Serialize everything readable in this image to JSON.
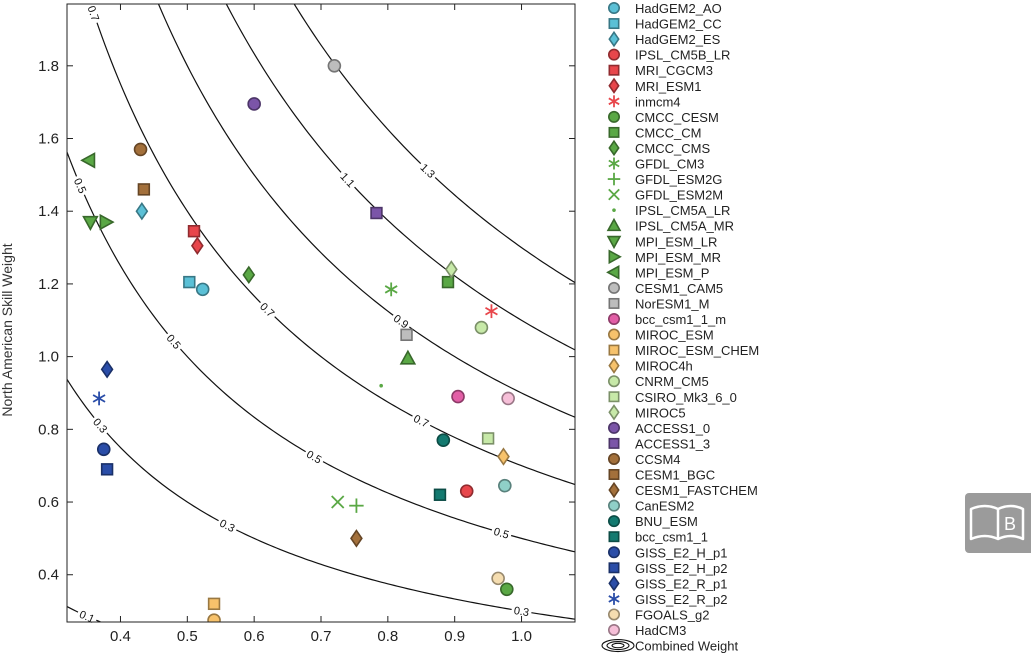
{
  "chart_data": {
    "type": "scatter",
    "title": "",
    "xlabel": "",
    "ylabel": "North American Skill Weight",
    "xlim": [
      0.32,
      1.08
    ],
    "ylim": [
      0.27,
      1.97
    ],
    "x_ticks": [
      "0.4",
      "0.5",
      "0.6",
      "0.7",
      "0.8",
      "0.9",
      "1.0"
    ],
    "y_ticks": [
      "0.4",
      "0.6",
      "0.8",
      "1.0",
      "1.2",
      "1.4",
      "1.6",
      "1.8"
    ],
    "grid": false,
    "legend_position": "right-outside",
    "contours": {
      "function": "x*y",
      "levels": [
        {
          "value": 0.1,
          "label": "0.1"
        },
        {
          "value": 0.3,
          "label": "0.3"
        },
        {
          "value": 0.5,
          "label": "0.5"
        },
        {
          "value": 0.7,
          "label": "0.7"
        },
        {
          "value": 0.9,
          "label": "0.9"
        },
        {
          "value": 1.1,
          "label": "1.1"
        },
        {
          "value": 1.3,
          "label": "1.3"
        }
      ]
    },
    "legend_footer": "Combined Weight",
    "series": [
      {
        "name": "HadGEM2_AO",
        "marker": "circle",
        "color": "#5bc0d6",
        "x": [
          0.523
        ],
        "y": [
          1.185
        ]
      },
      {
        "name": "HadGEM2_CC",
        "marker": "square",
        "color": "#5bc0d6",
        "x": [
          0.503
        ],
        "y": [
          1.205
        ]
      },
      {
        "name": "HadGEM2_ES",
        "marker": "diamond",
        "color": "#5bc0d6",
        "x": [
          0.432
        ],
        "y": [
          1.4
        ]
      },
      {
        "name": "IPSL_CM5B_LR",
        "marker": "circle",
        "color": "#e8464b",
        "x": [
          0.918
        ],
        "y": [
          0.63
        ]
      },
      {
        "name": "MRI_CGCM3",
        "marker": "square",
        "color": "#e8464b",
        "x": [
          0.51
        ],
        "y": [
          1.345
        ]
      },
      {
        "name": "MRI_ESM1",
        "marker": "diamond",
        "color": "#e8464b",
        "x": [
          0.515
        ],
        "y": [
          1.305
        ]
      },
      {
        "name": "inmcm4",
        "marker": "asterisk",
        "color": "#e8464b",
        "x": [
          0.955
        ],
        "y": [
          1.125
        ]
      },
      {
        "name": "CMCC_CESM",
        "marker": "circle",
        "color": "#5aa845",
        "x": [
          0.978
        ],
        "y": [
          0.36
        ]
      },
      {
        "name": "CMCC_CM",
        "marker": "square",
        "color": "#5aa845",
        "x": [
          0.89
        ],
        "y": [
          1.205
        ]
      },
      {
        "name": "CMCC_CMS",
        "marker": "diamond",
        "color": "#5aa845",
        "x": [
          0.592
        ],
        "y": [
          1.225
        ]
      },
      {
        "name": "GFDL_CM3",
        "marker": "asterisk",
        "color": "#5aa845",
        "x": [
          0.805
        ],
        "y": [
          1.185
        ]
      },
      {
        "name": "GFDL_ESM2G",
        "marker": "plus",
        "color": "#5aa845",
        "x": [
          0.753
        ],
        "y": [
          0.59
        ]
      },
      {
        "name": "GFDL_ESM2M",
        "marker": "x",
        "color": "#5aa845",
        "x": [
          0.725
        ],
        "y": [
          0.6
        ]
      },
      {
        "name": "IPSL_CM5A_LR",
        "marker": "dot",
        "color": "#5aa845",
        "x": [
          0.79
        ],
        "y": [
          0.92
        ]
      },
      {
        "name": "IPSL_CM5A_MR",
        "marker": "triangle-up",
        "color": "#5aa845",
        "x": [
          0.83
        ],
        "y": [
          0.995
        ]
      },
      {
        "name": "MPI_ESM_LR",
        "marker": "triangle-down",
        "color": "#5aa845",
        "x": [
          0.355
        ],
        "y": [
          1.37
        ]
      },
      {
        "name": "MPI_ESM_MR",
        "marker": "triangle-right",
        "color": "#5aa845",
        "x": [
          0.378
        ],
        "y": [
          1.37
        ]
      },
      {
        "name": "MPI_ESM_P",
        "marker": "triangle-left",
        "color": "#5aa845",
        "x": [
          0.353
        ],
        "y": [
          1.54
        ]
      },
      {
        "name": "CESM1_CAM5",
        "marker": "circle",
        "color": "#bdbdbd",
        "x": [
          0.72
        ],
        "y": [
          1.8
        ]
      },
      {
        "name": "NorESM1_M",
        "marker": "square",
        "color": "#bdbdbd",
        "x": [
          0.828
        ],
        "y": [
          1.06
        ]
      },
      {
        "name": "bcc_csm1_1_m",
        "marker": "circle",
        "color": "#e25ea6",
        "x": [
          0.905
        ],
        "y": [
          0.89
        ]
      },
      {
        "name": "MIROC_ESM",
        "marker": "circle",
        "color": "#f7c26b",
        "x": [
          0.54
        ],
        "y": [
          0.275
        ]
      },
      {
        "name": "MIROC_ESM_CHEM",
        "marker": "square",
        "color": "#f7c26b",
        "x": [
          0.54
        ],
        "y": [
          0.32
        ]
      },
      {
        "name": "MIROC4h",
        "marker": "diamond",
        "color": "#f7c26b",
        "x": [
          0.973
        ],
        "y": [
          0.725
        ]
      },
      {
        "name": "CNRM_CM5",
        "marker": "circle",
        "color": "#c7e9a8",
        "x": [
          0.94
        ],
        "y": [
          1.08
        ]
      },
      {
        "name": "CSIRO_Mk3_6_0",
        "marker": "square",
        "color": "#c7e9a8",
        "x": [
          0.95
        ],
        "y": [
          0.775
        ]
      },
      {
        "name": "MIROC5",
        "marker": "diamond",
        "color": "#c7e9a8",
        "x": [
          0.895
        ],
        "y": [
          1.24
        ]
      },
      {
        "name": "ACCESS1_0",
        "marker": "circle",
        "color": "#7b55a8",
        "x": [
          0.6
        ],
        "y": [
          1.695
        ]
      },
      {
        "name": "ACCESS1_3",
        "marker": "square",
        "color": "#7b55a8",
        "x": [
          0.783
        ],
        "y": [
          1.395
        ]
      },
      {
        "name": "CCSM4",
        "marker": "circle",
        "color": "#a3703b",
        "x": [
          0.43
        ],
        "y": [
          1.57
        ]
      },
      {
        "name": "CESM1_BGC",
        "marker": "square",
        "color": "#a3703b",
        "x": [
          0.435
        ],
        "y": [
          1.46
        ]
      },
      {
        "name": "CESM1_FASTCHEM",
        "marker": "diamond",
        "color": "#a3703b",
        "x": [
          0.753
        ],
        "y": [
          0.5
        ]
      },
      {
        "name": "CanESM2",
        "marker": "circle",
        "color": "#8fd0c8",
        "x": [
          0.975
        ],
        "y": [
          0.645
        ]
      },
      {
        "name": "BNU_ESM",
        "marker": "circle",
        "color": "#137a70",
        "x": [
          0.883
        ],
        "y": [
          0.77
        ]
      },
      {
        "name": "bcc_csm1_1",
        "marker": "square",
        "color": "#137a70",
        "x": [
          0.878
        ],
        "y": [
          0.62
        ]
      },
      {
        "name": "GISS_E2_H_p1",
        "marker": "circle",
        "color": "#2a4da8",
        "x": [
          0.375
        ],
        "y": [
          0.745
        ]
      },
      {
        "name": "GISS_E2_H_p2",
        "marker": "square",
        "color": "#2a4da8",
        "x": [
          0.38
        ],
        "y": [
          0.69
        ]
      },
      {
        "name": "GISS_E2_R_p1",
        "marker": "diamond",
        "color": "#2a4da8",
        "x": [
          0.38
        ],
        "y": [
          0.965
        ]
      },
      {
        "name": "GISS_E2_R_p2",
        "marker": "asterisk",
        "color": "#2a4da8",
        "x": [
          0.368
        ],
        "y": [
          0.885
        ]
      },
      {
        "name": "FGOALS_g2",
        "marker": "circle",
        "color": "#f5ddb0",
        "x": [
          0.965
        ],
        "y": [
          0.39
        ]
      },
      {
        "name": "HadCM3",
        "marker": "circle",
        "color": "#f6bfd8",
        "x": [
          0.98
        ],
        "y": [
          0.885
        ]
      }
    ]
  }
}
